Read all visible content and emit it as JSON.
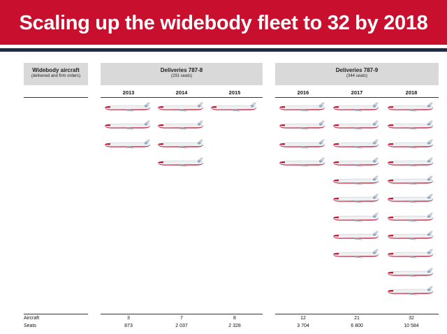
{
  "title": "Scaling up the widebody fleet to 32 by 2018",
  "left_header": {
    "title": "Widebody aircraft",
    "subtitle": "(delivered and firm orders)"
  },
  "groups": [
    {
      "title": "Deliveries 787-8",
      "subtitle": "(291 seats)"
    },
    {
      "title": "Deliveries 787-9",
      "subtitle": "(344 seats)"
    }
  ],
  "years": [
    "2013",
    "2014",
    "2015",
    "2016",
    "2017",
    "2018"
  ],
  "deliveries": [
    3,
    4,
    1,
    4,
    9,
    11
  ],
  "row_labels": {
    "aircraft": "Aircraft",
    "seats": "Seats"
  },
  "aircraft": [
    "3",
    "7",
    "8",
    "12",
    "21",
    "32"
  ],
  "seats": [
    "873",
    "2 037",
    "2 328",
    "3 704",
    "6 800",
    "10 584"
  ],
  "icon": "airplane-icon",
  "colors": {
    "banner": "#c8102e",
    "navy": "#1e2a4a",
    "header_box": "#d9d9d9",
    "plane_nose": "#c8102e"
  }
}
